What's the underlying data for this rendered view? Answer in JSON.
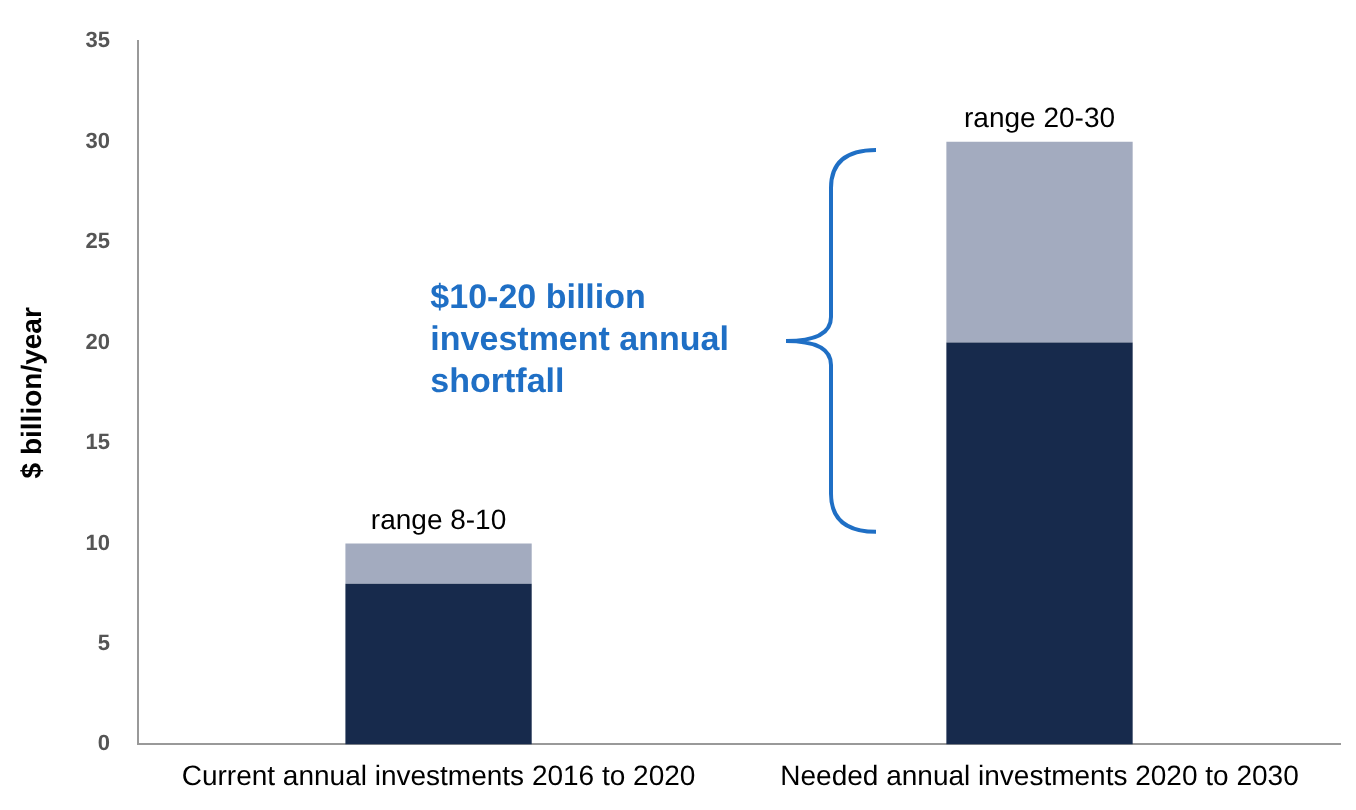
{
  "chart_data": {
    "type": "bar",
    "stacked": true,
    "ylabel": "$ billion/year",
    "categories": [
      "Current annual investments 2016 to 2020",
      "Needed annual investments 2020 to 2030"
    ],
    "series": [
      {
        "color": "#172a4c",
        "values": [
          8,
          20
        ]
      },
      {
        "color": "#a3abbf",
        "values": [
          2,
          10
        ]
      }
    ],
    "totals": [
      "range 8-10",
      "range 20-30"
    ],
    "annotations": [
      "$10-20 billion investment annual shortfall"
    ],
    "ylim": [
      0,
      35
    ],
    "yticks": [
      0,
      5,
      10,
      15,
      20,
      25,
      30,
      35
    ],
    "grid": false,
    "legend": false
  }
}
